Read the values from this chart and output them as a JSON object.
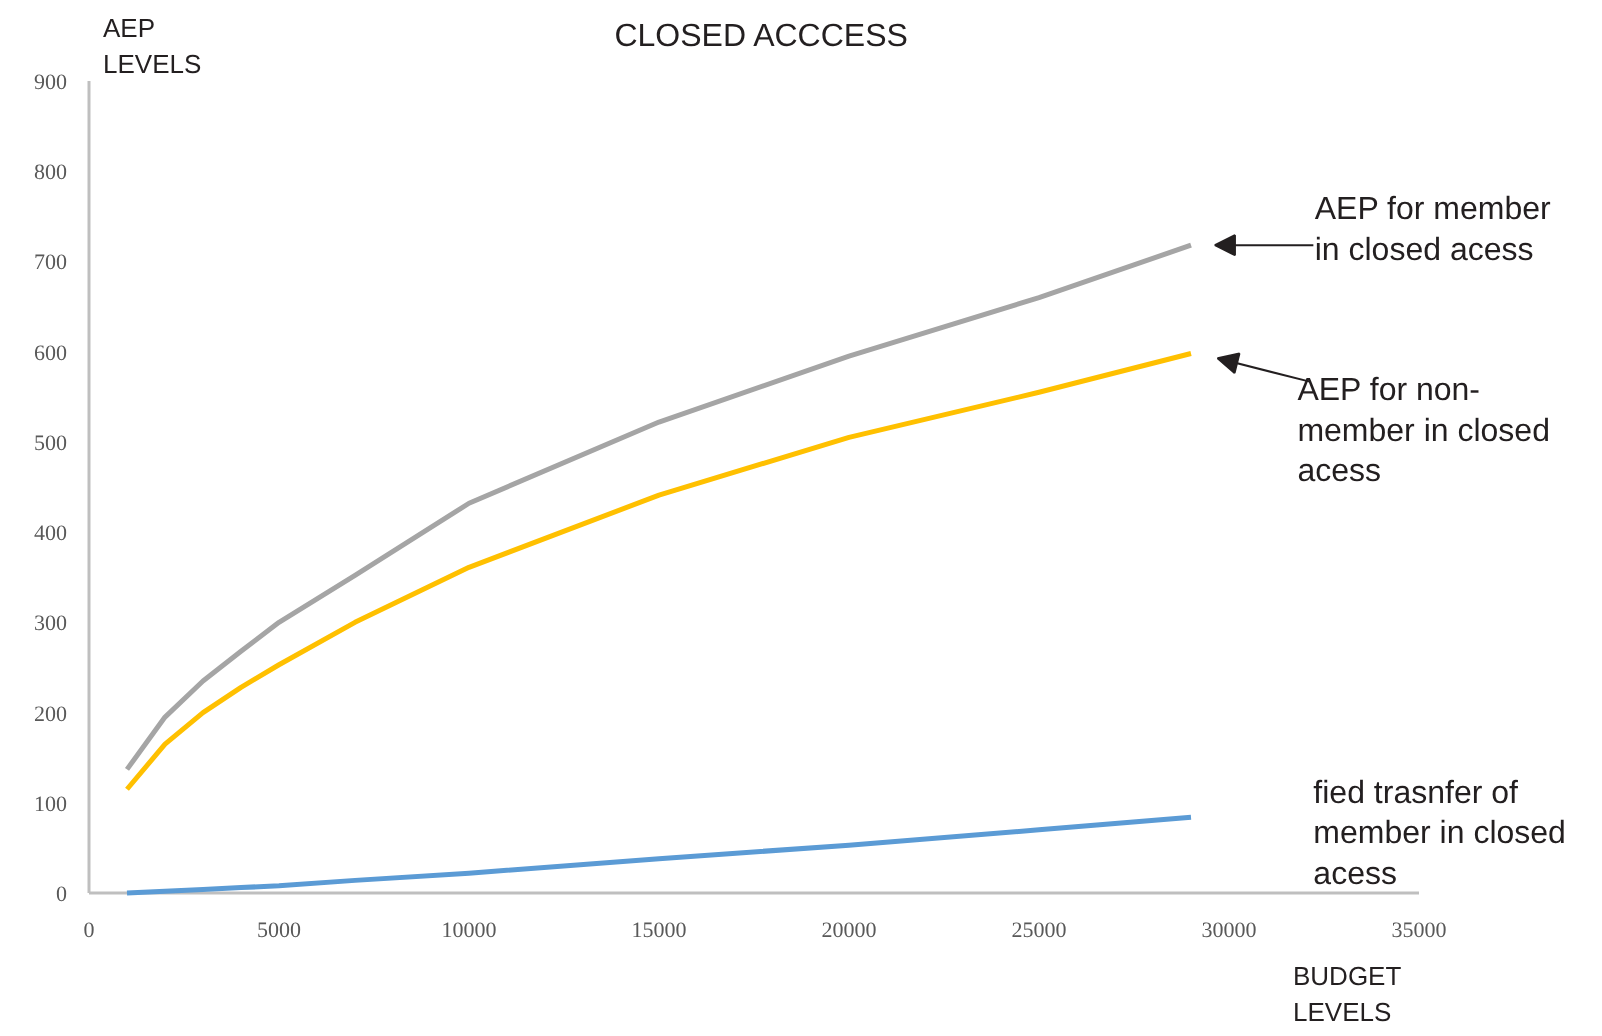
{
  "chart_data": {
    "type": "line",
    "title": "CLOSED ACCCESS",
    "xlabel": "BUDGET\nLEVELS",
    "ylabel": "AEP\nLEVELS",
    "x": [
      1000,
      2000,
      3000,
      4000,
      5000,
      7000,
      10000,
      15000,
      20000,
      25000,
      29000
    ],
    "series": [
      {
        "name": "AEP for member\nin closed acess",
        "color": "#a5a5a5",
        "values": [
          137,
          195,
          235,
          268,
          300,
          352,
          432,
          522,
          595,
          660,
          718
        ]
      },
      {
        "name": "AEP for non-\nmember in closed\nacess",
        "color": "#ffc000",
        "values": [
          115,
          165,
          200,
          228,
          253,
          300,
          361,
          441,
          505,
          555,
          598
        ]
      },
      {
        "name": "fied trasnfer of\nmember in closed\nacess",
        "color": "#5b9bd5",
        "values": [
          0,
          2,
          4,
          6,
          8,
          14,
          22,
          38,
          53,
          70,
          84
        ]
      }
    ],
    "xlim": [
      0,
      35000
    ],
    "ylim": [
      0,
      900
    ],
    "xticks": [
      0,
      5000,
      10000,
      15000,
      20000,
      25000,
      30000,
      35000
    ],
    "yticks": [
      0,
      100,
      200,
      300,
      400,
      500,
      600,
      700,
      800,
      900
    ],
    "grid": false,
    "legend": false,
    "marker": "none",
    "line_style": "solid"
  }
}
